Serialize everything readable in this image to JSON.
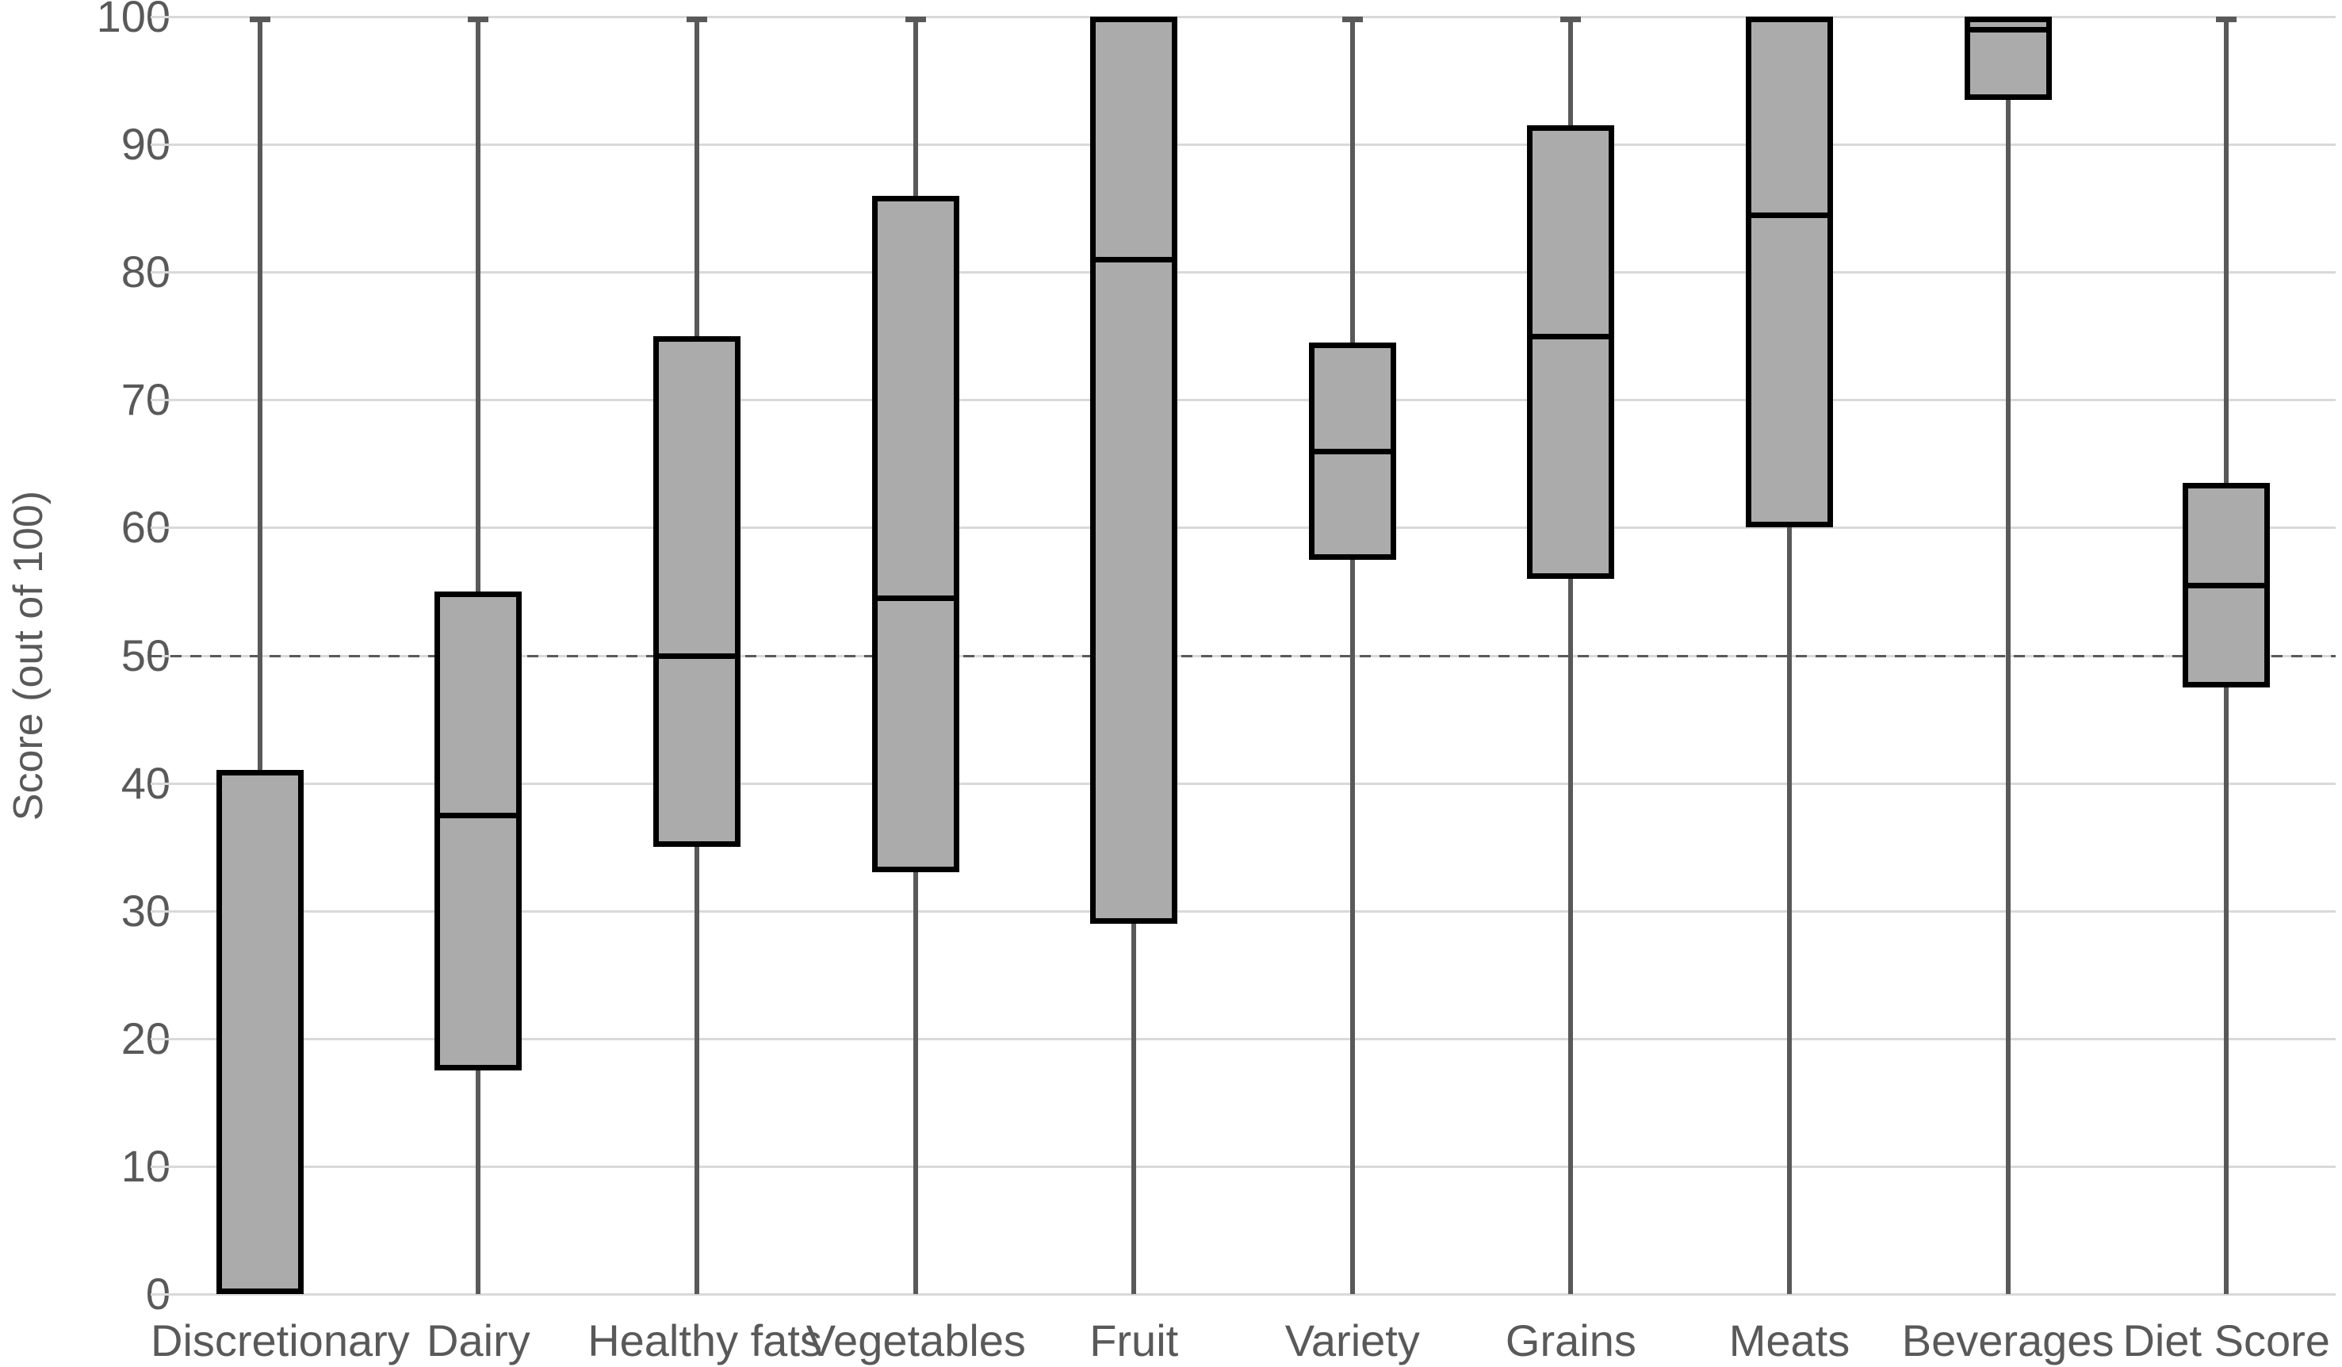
{
  "chart_data": {
    "type": "box",
    "title": "",
    "ylabel": "Score (out of 100)",
    "xlabel": "",
    "ylim": [
      0,
      100
    ],
    "yticks": [
      0,
      10,
      20,
      30,
      40,
      50,
      60,
      70,
      80,
      90,
      100
    ],
    "reference_line": 50,
    "grid": "horizontal",
    "legend": "none",
    "categories": [
      "Discretionary",
      "Dairy",
      "Healthy fats",
      "Vegetables",
      "Fruit",
      "Variety",
      "Grains",
      "Meats",
      "Beverages",
      "Diet Score"
    ],
    "boxes": [
      {
        "category": "Discretionary",
        "min": 0,
        "q1": 0,
        "median": null,
        "q3": 41,
        "max": 100
      },
      {
        "category": "Dairy",
        "min": 0,
        "q1": 17.5,
        "median": 37.5,
        "q3": 55,
        "max": 100
      },
      {
        "category": "Healthy fats",
        "min": 0,
        "q1": 35,
        "median": 50,
        "q3": 75,
        "max": 100
      },
      {
        "category": "Vegetables",
        "min": 0,
        "q1": 33,
        "median": 54.5,
        "q3": 86,
        "max": 100
      },
      {
        "category": "Fruit",
        "min": 0,
        "q1": 29,
        "median": 81,
        "q3": 100,
        "max": 100
      },
      {
        "category": "Variety",
        "min": 0,
        "q1": 57.5,
        "median": 66,
        "q3": 74.5,
        "max": 100
      },
      {
        "category": "Grains",
        "min": 0,
        "q1": 56,
        "median": 75,
        "q3": 91.5,
        "max": 100
      },
      {
        "category": "Meats",
        "min": 0,
        "q1": 60,
        "median": 84.5,
        "q3": 100,
        "max": 100
      },
      {
        "category": "Beverages",
        "min": 0,
        "q1": 93.5,
        "median": 99,
        "q3": 100,
        "max": 100
      },
      {
        "category": "Diet Score",
        "min": 0,
        "q1": 47.5,
        "median": 55.5,
        "q3": 63.5,
        "max": 100
      }
    ]
  },
  "colors": {
    "background": "#ffffff",
    "box_fill": "#ababab",
    "box_border": "#000000",
    "whisker": "#595959",
    "gridline": "#d9d9d9",
    "reference_line": "#595959",
    "text": "#595959"
  }
}
